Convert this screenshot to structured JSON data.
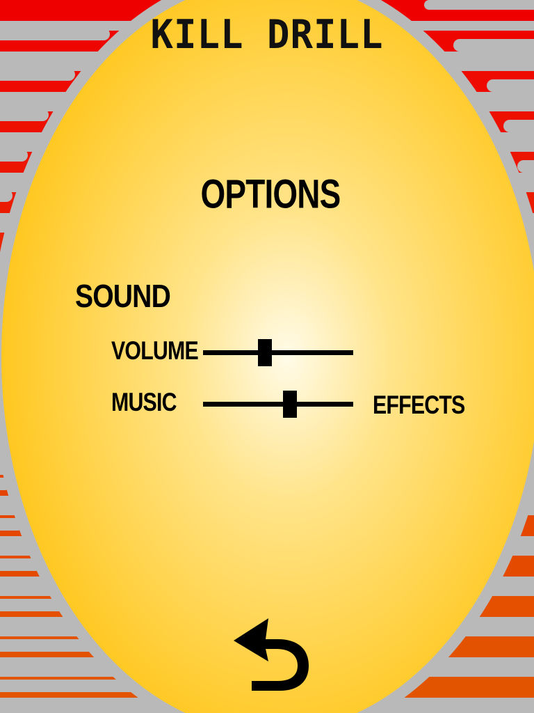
{
  "game": {
    "title": "KILL DRILL"
  },
  "screen": {
    "heading": "OPTIONS"
  },
  "sound": {
    "heading": "SOUND",
    "volume": {
      "label": "VOLUME",
      "level": 0.41
    },
    "balance": {
      "left_label": "MUSIC",
      "right_label": "EFFECTS",
      "level": 0.58
    }
  },
  "navigation": {
    "back_icon": "back-arrow-icon"
  },
  "colors": {
    "stripe_top": "#ee0000",
    "stripe_bottom": "#e35400",
    "rail": "#b9b9b9",
    "oval_center": "#fffbe8",
    "oval_edge": "#ffc61a",
    "ink": "#000000"
  }
}
